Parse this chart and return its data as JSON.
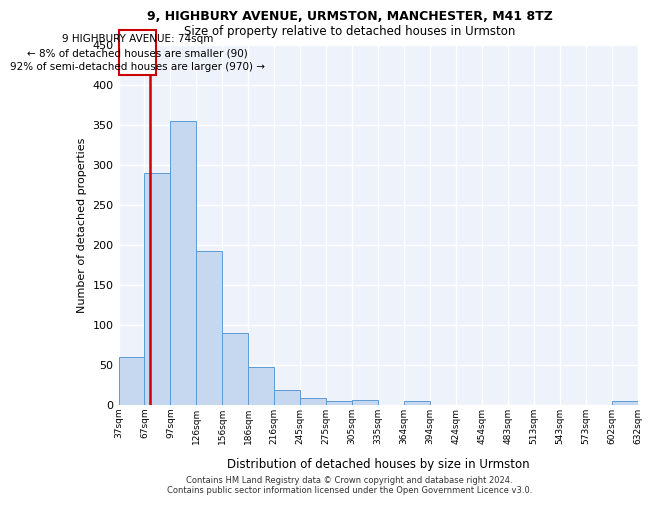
{
  "title1": "9, HIGHBURY AVENUE, URMSTON, MANCHESTER, M41 8TZ",
  "title2": "Size of property relative to detached houses in Urmston",
  "xlabel": "Distribution of detached houses by size in Urmston",
  "ylabel": "Number of detached properties",
  "bin_labels": [
    "37sqm",
    "67sqm",
    "97sqm",
    "126sqm",
    "156sqm",
    "186sqm",
    "216sqm",
    "245sqm",
    "275sqm",
    "305sqm",
    "335sqm",
    "364sqm",
    "394sqm",
    "424sqm",
    "454sqm",
    "483sqm",
    "513sqm",
    "543sqm",
    "573sqm",
    "602sqm",
    "632sqm"
  ],
  "bar_heights": [
    60,
    290,
    355,
    192,
    90,
    47,
    19,
    9,
    5,
    6,
    0,
    5,
    0,
    0,
    0,
    0,
    0,
    0,
    0,
    5
  ],
  "bar_color": "#c5d8f0",
  "bar_edge_color": "#5b9bd5",
  "annotation_text_line1": "9 HIGHBURY AVENUE: 74sqm",
  "annotation_text_line2": "← 8% of detached houses are smaller (90)",
  "annotation_text_line3": "92% of semi-detached houses are larger (970) →",
  "annotation_box_color": "#ffffff",
  "annotation_box_edge_color": "#cc0000",
  "vline_color": "#cc0000",
  "footer_text": "Contains HM Land Registry data © Crown copyright and database right 2024.\nContains public sector information licensed under the Open Government Licence v3.0.",
  "ylim": [
    0,
    450
  ],
  "yticks": [
    0,
    50,
    100,
    150,
    200,
    250,
    300,
    350,
    400,
    450
  ],
  "bg_color": "#eef2fa",
  "grid_color": "#ffffff",
  "vline_x_data": 0.74
}
